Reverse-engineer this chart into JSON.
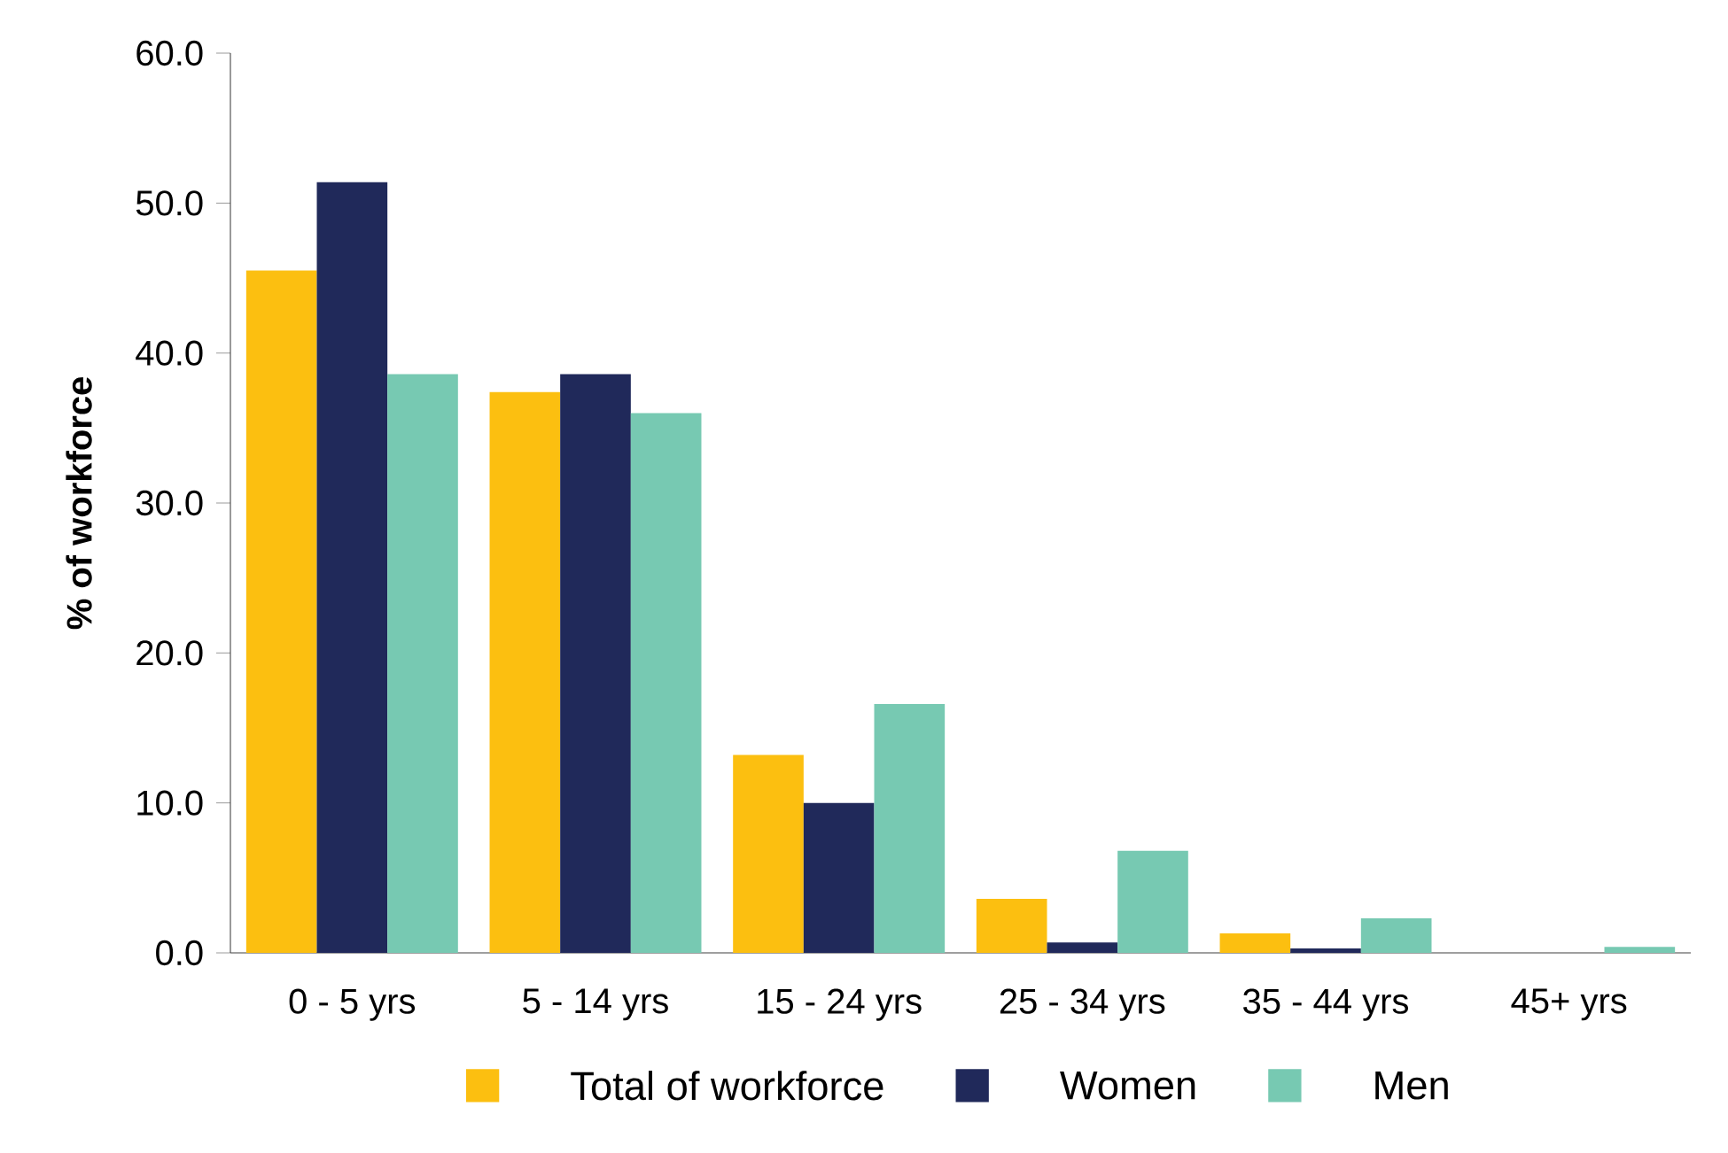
{
  "chart_data": {
    "type": "bar",
    "ylabel": "% of workforce",
    "categories": [
      "0 - 5 yrs",
      "5 - 14 yrs",
      "15 - 24 yrs",
      "25 - 34 yrs",
      "35 - 44 yrs",
      "45+ yrs"
    ],
    "series": [
      {
        "name": "Total of workforce",
        "color": "#fcbf10",
        "values": [
          45.5,
          37.4,
          13.2,
          3.6,
          1.3,
          0
        ]
      },
      {
        "name": "Women",
        "color": "#20295a",
        "values": [
          51.4,
          38.6,
          10.0,
          0.7,
          0.3,
          0
        ]
      },
      {
        "name": "Men",
        "color": "#77c9b2",
        "values": [
          38.6,
          36.0,
          16.6,
          6.8,
          2.3,
          0.4
        ]
      }
    ],
    "ylim": [
      0,
      60
    ],
    "yticks": [
      {
        "value": 0,
        "label": "0.0"
      },
      {
        "value": 10,
        "label": "10.0"
      },
      {
        "value": 20,
        "label": "20.0"
      },
      {
        "value": 30,
        "label": "30.0"
      },
      {
        "value": 40,
        "label": "40.0"
      },
      {
        "value": 50,
        "label": "50.0"
      },
      {
        "value": 60,
        "label": "60.0"
      }
    ],
    "legend": "bottom"
  }
}
